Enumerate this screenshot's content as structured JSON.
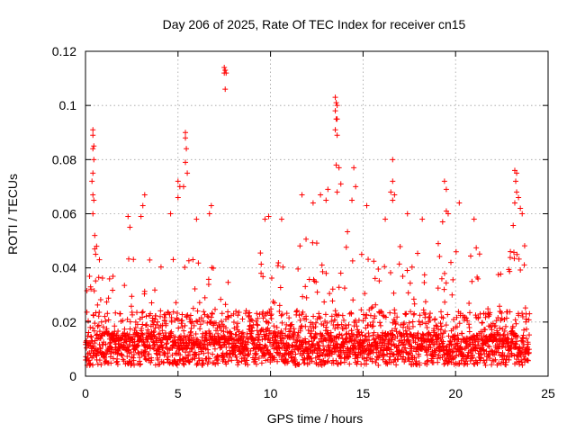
{
  "chart_data": {
    "type": "scatter",
    "title": "Day 206 of 2025, Rate Of TEC Index for receiver cn15",
    "xlabel": "GPS time / hours",
    "ylabel": "ROTI / TECUs",
    "xlim": [
      0,
      25
    ],
    "ylim": [
      0,
      0.12
    ],
    "x_ticks": [
      "0",
      "5",
      "10",
      "15",
      "20",
      "25"
    ],
    "y_ticks": [
      "0",
      "0.02",
      "0.04",
      "0.06",
      "0.08",
      "0.1",
      "0.12"
    ],
    "x_tick_values": [
      0,
      5,
      10,
      15,
      20,
      25
    ],
    "y_tick_values": [
      0,
      0.02,
      0.04,
      0.06,
      0.08,
      0.1,
      0.12
    ],
    "grid": true,
    "marker": "plus",
    "series_color": "#ff0000",
    "data_range_hours": [
      0,
      24
    ],
    "outliers": [
      {
        "x": 0.4,
        "y": 0.091
      },
      {
        "x": 0.4,
        "y": 0.089
      },
      {
        "x": 0.45,
        "y": 0.085
      },
      {
        "x": 0.4,
        "y": 0.084
      },
      {
        "x": 0.45,
        "y": 0.08
      },
      {
        "x": 0.4,
        "y": 0.075
      },
      {
        "x": 0.35,
        "y": 0.072
      },
      {
        "x": 0.4,
        "y": 0.067
      },
      {
        "x": 0.45,
        "y": 0.065
      },
      {
        "x": 0.4,
        "y": 0.06
      },
      {
        "x": 0.5,
        "y": 0.052
      },
      {
        "x": 0.6,
        "y": 0.048
      },
      {
        "x": 2.3,
        "y": 0.059
      },
      {
        "x": 2.4,
        "y": 0.055
      },
      {
        "x": 3.2,
        "y": 0.067
      },
      {
        "x": 3.1,
        "y": 0.063
      },
      {
        "x": 3.0,
        "y": 0.059
      },
      {
        "x": 4.6,
        "y": 0.06
      },
      {
        "x": 5.0,
        "y": 0.072
      },
      {
        "x": 5.1,
        "y": 0.07
      },
      {
        "x": 5.0,
        "y": 0.066
      },
      {
        "x": 5.4,
        "y": 0.09
      },
      {
        "x": 5.4,
        "y": 0.088
      },
      {
        "x": 5.45,
        "y": 0.084
      },
      {
        "x": 5.4,
        "y": 0.079
      },
      {
        "x": 5.5,
        "y": 0.075
      },
      {
        "x": 5.3,
        "y": 0.07
      },
      {
        "x": 6.0,
        "y": 0.058
      },
      {
        "x": 6.8,
        "y": 0.063
      },
      {
        "x": 6.7,
        "y": 0.06
      },
      {
        "x": 7.5,
        "y": 0.114
      },
      {
        "x": 7.55,
        "y": 0.113
      },
      {
        "x": 7.6,
        "y": 0.112
      },
      {
        "x": 7.5,
        "y": 0.112
      },
      {
        "x": 7.55,
        "y": 0.106
      },
      {
        "x": 9.7,
        "y": 0.058
      },
      {
        "x": 9.9,
        "y": 0.059
      },
      {
        "x": 10.6,
        "y": 0.058
      },
      {
        "x": 11.7,
        "y": 0.067
      },
      {
        "x": 12.3,
        "y": 0.064
      },
      {
        "x": 12.7,
        "y": 0.067
      },
      {
        "x": 13.0,
        "y": 0.065
      },
      {
        "x": 13.1,
        "y": 0.069
      },
      {
        "x": 13.5,
        "y": 0.103
      },
      {
        "x": 13.55,
        "y": 0.101
      },
      {
        "x": 13.6,
        "y": 0.1
      },
      {
        "x": 13.5,
        "y": 0.098
      },
      {
        "x": 13.55,
        "y": 0.095
      },
      {
        "x": 13.6,
        "y": 0.095
      },
      {
        "x": 13.5,
        "y": 0.091
      },
      {
        "x": 13.6,
        "y": 0.089
      },
      {
        "x": 13.55,
        "y": 0.078
      },
      {
        "x": 13.7,
        "y": 0.077
      },
      {
        "x": 13.8,
        "y": 0.071
      },
      {
        "x": 13.6,
        "y": 0.068
      },
      {
        "x": 14.5,
        "y": 0.077
      },
      {
        "x": 14.6,
        "y": 0.07
      },
      {
        "x": 14.4,
        "y": 0.065
      },
      {
        "x": 15.2,
        "y": 0.063
      },
      {
        "x": 16.2,
        "y": 0.058
      },
      {
        "x": 16.6,
        "y": 0.08
      },
      {
        "x": 16.6,
        "y": 0.072
      },
      {
        "x": 16.5,
        "y": 0.068
      },
      {
        "x": 16.7,
        "y": 0.067
      },
      {
        "x": 16.6,
        "y": 0.065
      },
      {
        "x": 17.4,
        "y": 0.06
      },
      {
        "x": 18.2,
        "y": 0.058
      },
      {
        "x": 19.4,
        "y": 0.072
      },
      {
        "x": 19.5,
        "y": 0.069
      },
      {
        "x": 19.5,
        "y": 0.061
      },
      {
        "x": 19.6,
        "y": 0.06
      },
      {
        "x": 19.3,
        "y": 0.057
      },
      {
        "x": 20.2,
        "y": 0.064
      },
      {
        "x": 21.0,
        "y": 0.058
      },
      {
        "x": 23.2,
        "y": 0.076
      },
      {
        "x": 23.3,
        "y": 0.075
      },
      {
        "x": 23.25,
        "y": 0.072
      },
      {
        "x": 23.3,
        "y": 0.068
      },
      {
        "x": 23.4,
        "y": 0.066
      },
      {
        "x": 23.2,
        "y": 0.064
      },
      {
        "x": 23.5,
        "y": 0.062
      },
      {
        "x": 23.6,
        "y": 0.06
      }
    ],
    "bands": [
      {
        "x": 0.0,
        "spike": 0.045
      },
      {
        "x": 0.5,
        "spike": 0.05
      },
      {
        "x": 1.0,
        "spike": 0.04
      },
      {
        "x": 1.5,
        "spike": 0.045
      },
      {
        "x": 2.0,
        "spike": 0.035
      },
      {
        "x": 2.5,
        "spike": 0.048
      },
      {
        "x": 3.0,
        "spike": 0.05
      },
      {
        "x": 3.5,
        "spike": 0.043
      },
      {
        "x": 4.0,
        "spike": 0.044
      },
      {
        "x": 4.5,
        "spike": 0.052
      },
      {
        "x": 5.0,
        "spike": 0.062
      },
      {
        "x": 5.5,
        "spike": 0.065
      },
      {
        "x": 6.0,
        "spike": 0.05
      },
      {
        "x": 6.5,
        "spike": 0.052
      },
      {
        "x": 7.0,
        "spike": 0.04
      },
      {
        "x": 7.5,
        "spike": 0.038
      },
      {
        "x": 8.0,
        "spike": 0.03
      },
      {
        "x": 8.5,
        "spike": 0.028
      },
      {
        "x": 9.0,
        "spike": 0.03
      },
      {
        "x": 9.5,
        "spike": 0.05
      },
      {
        "x": 10.0,
        "spike": 0.045
      },
      {
        "x": 10.5,
        "spike": 0.055
      },
      {
        "x": 11.0,
        "spike": 0.042
      },
      {
        "x": 11.5,
        "spike": 0.05
      },
      {
        "x": 12.0,
        "spike": 0.058
      },
      {
        "x": 12.5,
        "spike": 0.05
      },
      {
        "x": 13.0,
        "spike": 0.055
      },
      {
        "x": 13.5,
        "spike": 0.062
      },
      {
        "x": 14.0,
        "spike": 0.055
      },
      {
        "x": 14.5,
        "spike": 0.06
      },
      {
        "x": 15.0,
        "spike": 0.05
      },
      {
        "x": 15.5,
        "spike": 0.045
      },
      {
        "x": 16.0,
        "spike": 0.05
      },
      {
        "x": 16.5,
        "spike": 0.058
      },
      {
        "x": 17.0,
        "spike": 0.052
      },
      {
        "x": 17.5,
        "spike": 0.05
      },
      {
        "x": 18.0,
        "spike": 0.048
      },
      {
        "x": 18.5,
        "spike": 0.042
      },
      {
        "x": 19.0,
        "spike": 0.05
      },
      {
        "x": 19.5,
        "spike": 0.058
      },
      {
        "x": 20.0,
        "spike": 0.048
      },
      {
        "x": 20.5,
        "spike": 0.045
      },
      {
        "x": 21.0,
        "spike": 0.05
      },
      {
        "x": 21.5,
        "spike": 0.048
      },
      {
        "x": 22.0,
        "spike": 0.042
      },
      {
        "x": 22.5,
        "spike": 0.04
      },
      {
        "x": 23.0,
        "spike": 0.055
      },
      {
        "x": 23.5,
        "spike": 0.06
      },
      {
        "x": 24.0,
        "spike": 0.035
      }
    ]
  }
}
